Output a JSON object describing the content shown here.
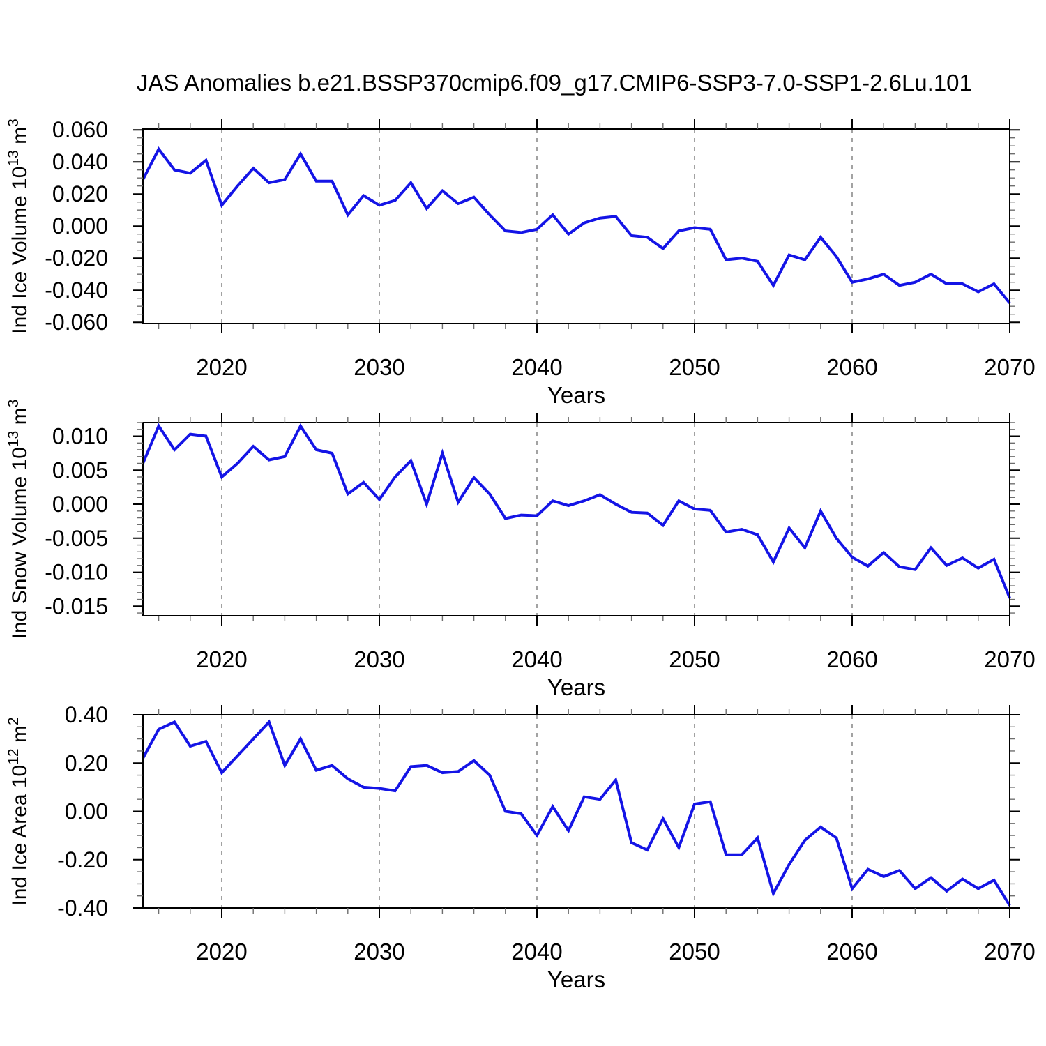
{
  "title": "JAS Anomalies b.e21.BSSP370cmip6.f09_g17.CMIP6-SSP3-7.0-SSP1-2.6Lu.101",
  "colors": {
    "line": "#1414e6",
    "grid": "#8c8c8c",
    "frame": "#000000",
    "major_tick": "#000000",
    "minor_tick": "#6e6e6e",
    "text": "#000000"
  },
  "chart_data": {
    "type": "line",
    "title": "JAS Anomalies b.e21.BSSP370cmip6.f09_g17.CMIP6-SSP3-7.0-SSP1-2.6Lu.101",
    "xlabel": "Years",
    "xlim": [
      2015,
      2070
    ],
    "xticks": [
      2020,
      2030,
      2040,
      2050,
      2060,
      2070
    ],
    "x_minor_step": 2,
    "grid": "vertical dashed lines at decade ticks",
    "legend": "none",
    "x": [
      2015,
      2016,
      2017,
      2018,
      2019,
      2020,
      2021,
      2022,
      2023,
      2024,
      2025,
      2026,
      2027,
      2028,
      2029,
      2030,
      2031,
      2032,
      2033,
      2034,
      2035,
      2036,
      2037,
      2038,
      2039,
      2040,
      2041,
      2042,
      2043,
      2044,
      2045,
      2046,
      2047,
      2048,
      2049,
      2050,
      2051,
      2052,
      2053,
      2054,
      2055,
      2056,
      2057,
      2058,
      2059,
      2060,
      2061,
      2062,
      2063,
      2064,
      2065,
      2066,
      2067,
      2068,
      2069,
      2070
    ],
    "panels": [
      {
        "name": "ice-volume",
        "ylabel": "Ind Ice Volume 10^13 m^3",
        "ylim": [
          -0.0608,
          0.0605
        ],
        "yticks": [
          0.06,
          0.04,
          0.02,
          0.0,
          -0.02,
          -0.04,
          -0.06
        ],
        "ytick_labels": [
          "0.060",
          "0.040",
          "0.020",
          "0.000",
          "-0.020",
          "-0.040",
          "-0.060"
        ],
        "y_minor_step": 0.005,
        "values": [
          0.029,
          0.048,
          0.035,
          0.033,
          0.041,
          0.013,
          0.025,
          0.036,
          0.027,
          0.029,
          0.045,
          0.028,
          0.028,
          0.007,
          0.019,
          0.013,
          0.016,
          0.027,
          0.011,
          0.022,
          0.014,
          0.018,
          0.007,
          -0.003,
          -0.004,
          -0.002,
          0.007,
          -0.005,
          0.002,
          0.005,
          0.006,
          -0.006,
          -0.007,
          -0.014,
          -0.003,
          -0.001,
          -0.002,
          -0.021,
          -0.02,
          -0.022,
          -0.037,
          -0.018,
          -0.021,
          -0.007,
          -0.019,
          -0.035,
          -0.033,
          -0.03,
          -0.037,
          -0.035,
          -0.03,
          -0.036,
          -0.036,
          -0.041,
          -0.036,
          -0.048
        ]
      },
      {
        "name": "snow-volume",
        "ylabel": "Ind Snow Volume 10^13 m^3",
        "ylim": [
          -0.0164,
          0.012
        ],
        "yticks": [
          0.01,
          0.005,
          0.0,
          -0.005,
          -0.01,
          -0.015
        ],
        "ytick_labels": [
          "0.010",
          "0.005",
          "0.000",
          "-0.005",
          "-0.010",
          "-0.015"
        ],
        "y_minor_step": 0.001,
        "values": [
          0.006,
          0.0115,
          0.008,
          0.0103,
          0.01,
          0.004,
          0.006,
          0.0085,
          0.0065,
          0.007,
          0.0115,
          0.008,
          0.0075,
          0.0015,
          0.0032,
          0.0007,
          0.004,
          0.0064,
          0.0,
          0.0075,
          0.0003,
          0.0039,
          0.0015,
          -0.0021,
          -0.0016,
          -0.0017,
          0.0005,
          -0.0002,
          0.0005,
          0.0014,
          0.0,
          -0.0012,
          -0.0013,
          -0.0031,
          0.0005,
          -0.0007,
          -0.0009,
          -0.0041,
          -0.0037,
          -0.0045,
          -0.0085,
          -0.0035,
          -0.0064,
          -0.001,
          -0.005,
          -0.0078,
          -0.0091,
          -0.0071,
          -0.0092,
          -0.0096,
          -0.0064,
          -0.009,
          -0.0079,
          -0.0094,
          -0.0081,
          -0.0138
        ]
      },
      {
        "name": "ice-area",
        "ylabel": "Ind Ice Area 10^12 m^2",
        "ylim": [
          -0.4,
          0.4
        ],
        "yticks": [
          0.4,
          0.2,
          0.0,
          -0.2,
          -0.4
        ],
        "ytick_labels": [
          "0.40",
          "0.20",
          "0.00",
          "-0.20",
          "-0.40"
        ],
        "y_minor_step": 0.05,
        "values": [
          0.22,
          0.34,
          0.37,
          0.27,
          0.29,
          0.16,
          0.23,
          0.3,
          0.37,
          0.19,
          0.3,
          0.17,
          0.19,
          0.135,
          0.1,
          0.095,
          0.085,
          0.185,
          0.19,
          0.16,
          0.165,
          0.21,
          0.15,
          0.0,
          -0.01,
          -0.1,
          0.02,
          -0.08,
          0.06,
          0.05,
          0.13,
          -0.13,
          -0.16,
          -0.03,
          -0.15,
          0.03,
          0.04,
          -0.18,
          -0.18,
          -0.11,
          -0.34,
          -0.22,
          -0.12,
          -0.065,
          -0.11,
          -0.32,
          -0.24,
          -0.27,
          -0.245,
          -0.32,
          -0.275,
          -0.33,
          -0.28,
          -0.32,
          -0.285,
          -0.39
        ]
      }
    ]
  }
}
